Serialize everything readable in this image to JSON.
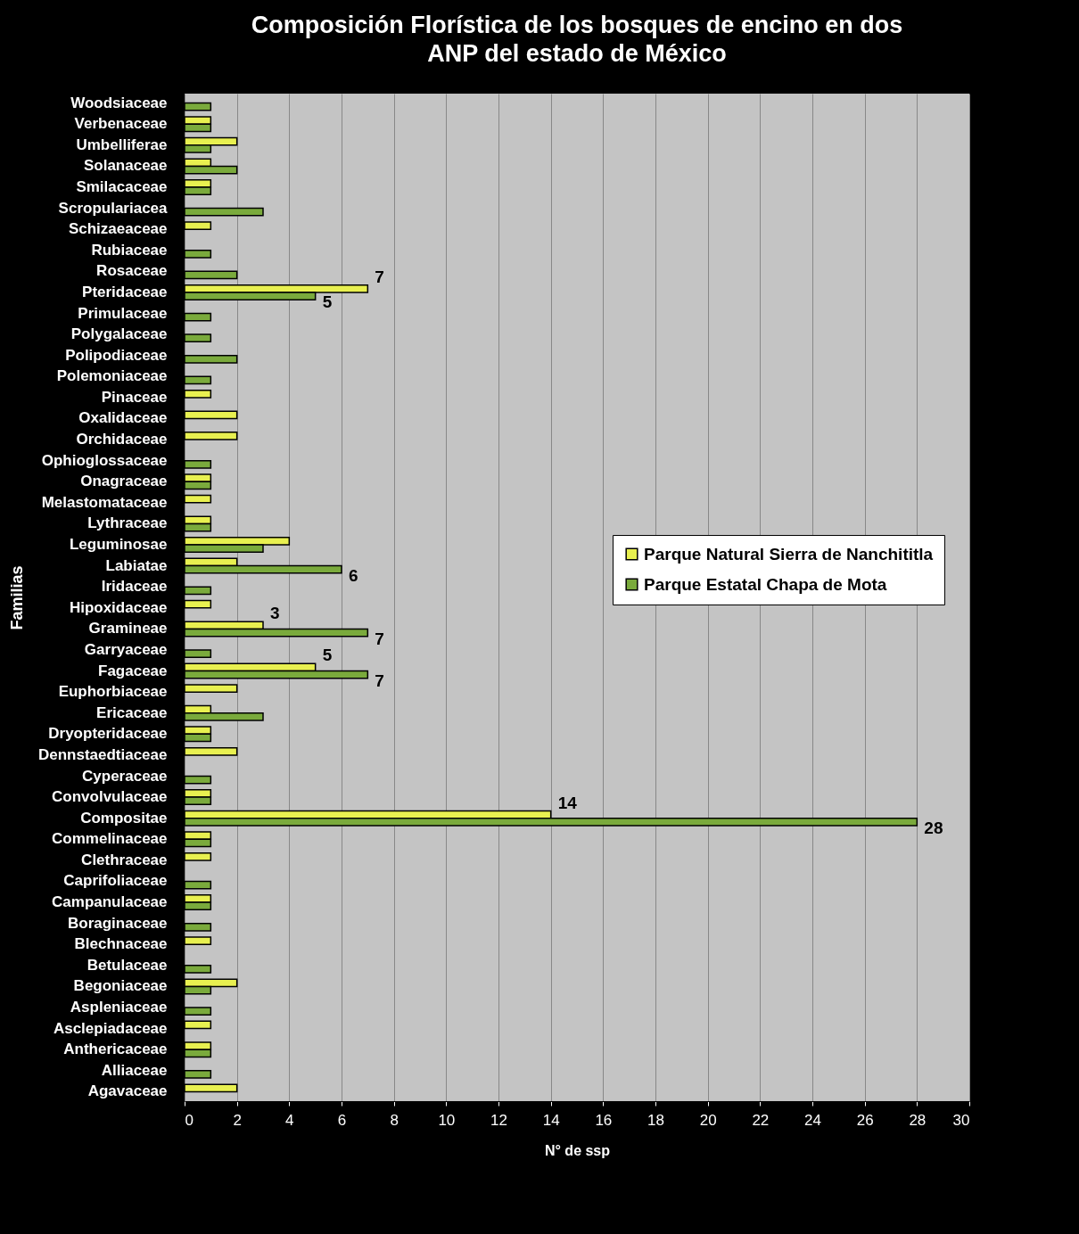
{
  "chart_data": {
    "type": "bar",
    "orientation": "horizontal",
    "title": "Composición Florística de los bosques de encino en  dos ANP del estado de México",
    "xlabel": "N° de ssp",
    "ylabel": "Familias",
    "categories": [
      "Woodsiaceae",
      "Verbenaceae",
      "Umbelliferae",
      "Solanaceae",
      "Smilacaceae",
      "Scropulariacea",
      "Schizaeaceae",
      "Rubiaceae",
      "Rosaceae",
      "Pteridaceae",
      "Primulaceae",
      "Polygalaceae",
      "Polipodiaceae",
      "Polemoniaceae",
      "Pinaceae",
      "Oxalidaceae",
      "Orchidaceae",
      "Ophioglossaceae",
      "Onagraceae",
      "Melastomataceae",
      "Lythraceae",
      "Leguminosae",
      "Labiatae",
      "Iridaceae",
      "Hipoxidaceae",
      "Gramineae",
      "Garryaceae",
      "Fagaceae",
      "Euphorbiaceae",
      "Ericaceae",
      "Dryopteridaceae",
      "Dennstaedtiaceae",
      "Cyperaceae",
      "Convolvulaceae",
      "Compositae",
      "Commelinaceae",
      "Clethraceae",
      "Caprifoliaceae",
      "Campanulaceae",
      "Boraginaceae",
      "Blechnaceae",
      "Betulaceae",
      "Begoniaceae",
      "Aspleniaceae",
      "Asclepiadaceae",
      "Anthericaceae",
      "Alliaceae",
      "Agavaceae"
    ],
    "series": [
      {
        "name": "Parque Natural Sierra de Nanchititla",
        "color": "#e8f050",
        "values": [
          null,
          1,
          2,
          1,
          1,
          null,
          1,
          null,
          null,
          7,
          null,
          null,
          null,
          null,
          1,
          2,
          2,
          null,
          1,
          1,
          1,
          4,
          2,
          null,
          1,
          3,
          null,
          5,
          2,
          1,
          1,
          2,
          null,
          1,
          14,
          1,
          1,
          null,
          1,
          null,
          1,
          null,
          2,
          null,
          1,
          1,
          null,
          2
        ],
        "value_labels": [
          null,
          null,
          null,
          null,
          null,
          null,
          null,
          null,
          null,
          "7",
          null,
          null,
          null,
          null,
          null,
          null,
          null,
          null,
          null,
          null,
          null,
          null,
          null,
          null,
          null,
          "3",
          null,
          "5",
          null,
          null,
          null,
          null,
          null,
          null,
          "14",
          null,
          null,
          null,
          null,
          null,
          null,
          null,
          null,
          null,
          null,
          null,
          null,
          null
        ]
      },
      {
        "name": "Parque Estatal Chapa de Mota",
        "color": "#7aaa3c",
        "values": [
          1,
          1,
          1,
          2,
          1,
          3,
          null,
          1,
          2,
          5,
          1,
          1,
          2,
          1,
          null,
          null,
          null,
          1,
          1,
          null,
          1,
          3,
          6,
          1,
          null,
          7,
          1,
          7,
          null,
          3,
          1,
          null,
          1,
          1,
          28,
          1,
          null,
          1,
          1,
          1,
          null,
          1,
          1,
          1,
          null,
          1,
          1,
          null
        ],
        "value_labels": [
          null,
          null,
          null,
          null,
          null,
          null,
          null,
          null,
          null,
          "5",
          null,
          null,
          null,
          null,
          null,
          null,
          null,
          null,
          null,
          null,
          null,
          null,
          "6",
          null,
          null,
          "7",
          null,
          "7",
          null,
          null,
          null,
          null,
          null,
          null,
          "28",
          null,
          null,
          null,
          null,
          null,
          null,
          null,
          null,
          null,
          null,
          null,
          null,
          null
        ]
      }
    ],
    "xlim": [
      0,
      30
    ],
    "xticks": [
      0,
      2,
      4,
      6,
      8,
      10,
      12,
      14,
      16,
      18,
      20,
      22,
      24,
      26,
      28,
      30
    ],
    "grid": "x",
    "legend": "right"
  }
}
